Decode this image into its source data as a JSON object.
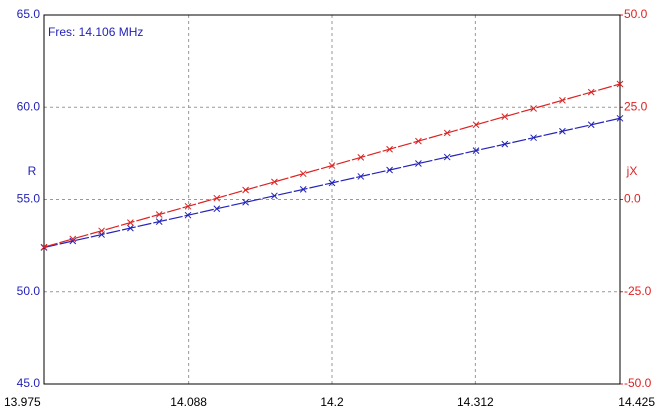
{
  "chart_data": {
    "type": "line",
    "annotation": "Fres: 14.106 MHz",
    "ylabel": "R",
    "y2label": "jX",
    "x": [
      13.975,
      13.9975,
      14.02,
      14.0425,
      14.065,
      14.0875,
      14.11,
      14.1325,
      14.155,
      14.1775,
      14.2,
      14.2225,
      14.245,
      14.2675,
      14.29,
      14.3125,
      14.335,
      14.3575,
      14.38,
      14.4025,
      14.425
    ],
    "series": [
      {
        "color": "#2323b8",
        "values": [
          52.4,
          52.75,
          53.1,
          53.45,
          53.8,
          54.15,
          54.5,
          54.85,
          55.2,
          55.55,
          55.9,
          56.25,
          56.6,
          56.95,
          57.3,
          57.65,
          58,
          58.35,
          58.7,
          59.05,
          59.4
        ]
      },
      {
        "color": "#dd2222",
        "axis": "y2",
        "values": [
          -12.9,
          -10.69,
          -8.48,
          -6.27,
          -4.06,
          -1.85,
          0.36,
          2.57,
          4.78,
          6.99,
          9.2,
          11.41,
          13.62,
          15.83,
          18.04,
          20.25,
          22.46,
          24.67,
          26.88,
          29.09,
          31.3
        ]
      }
    ],
    "xlim": [
      13.975,
      14.425
    ],
    "xticks": [
      13.975,
      14.088,
      14.2,
      14.312,
      14.425
    ],
    "ylim": [
      45,
      65
    ],
    "yticks": [
      {
        "value": 45,
        "label": "45.0"
      },
      {
        "value": 50,
        "label": "50.0"
      },
      {
        "value": 55,
        "label": "55.0"
      },
      {
        "value": 60,
        "label": "60.0"
      },
      {
        "value": 65,
        "label": "65.0"
      }
    ],
    "y2lim": [
      -50,
      50
    ],
    "y2ticks": [
      {
        "value": -50,
        "label": "-50.0"
      },
      {
        "value": -25,
        "label": "-25.0"
      },
      {
        "value": 0,
        "label": "0.0"
      },
      {
        "value": 25,
        "label": "25.0"
      },
      {
        "value": 50,
        "label": "50.0"
      }
    ],
    "grid": true
  }
}
